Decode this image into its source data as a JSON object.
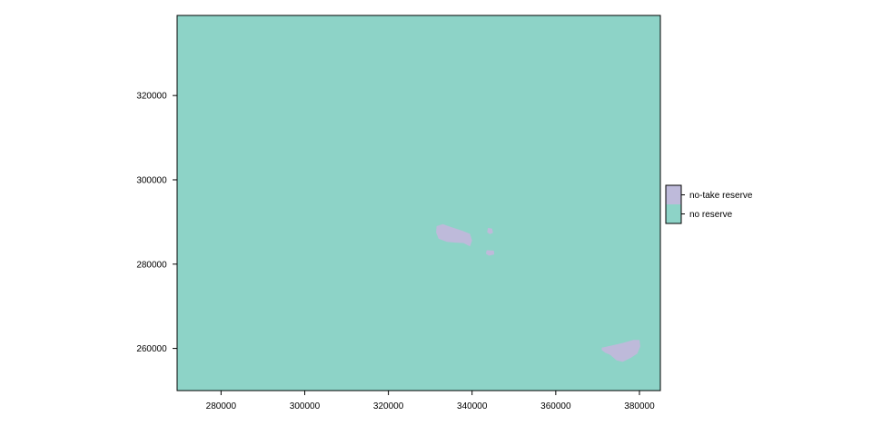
{
  "chart_data": {
    "type": "heatmap",
    "title": "",
    "xlabel": "",
    "ylabel": "",
    "xlim": [
      269500,
      385000
    ],
    "ylim": [
      250000,
      339000
    ],
    "x_ticks": [
      280000,
      300000,
      320000,
      340000,
      360000,
      380000
    ],
    "y_ticks": [
      260000,
      280000,
      300000,
      320000
    ],
    "x_tick_labels": [
      "280000",
      "300000",
      "320000",
      "340000",
      "360000",
      "380000"
    ],
    "y_tick_labels": [
      "260000",
      "280000",
      "300000",
      "320000"
    ],
    "grid": false,
    "legend_position": "right",
    "categories": [
      {
        "name": "no-take reserve",
        "color": "#bebada"
      },
      {
        "name": "no reserve",
        "color": "#8dd3c7"
      }
    ],
    "background_category": "no reserve",
    "regions": [
      {
        "category": "no-take reserve",
        "polygon": [
          [
            331500,
            289000
          ],
          [
            333000,
            289500
          ],
          [
            335000,
            288800
          ],
          [
            337500,
            288000
          ],
          [
            339500,
            287200
          ],
          [
            340000,
            285600
          ],
          [
            339500,
            284200
          ],
          [
            338000,
            285000
          ],
          [
            336000,
            285100
          ],
          [
            334000,
            285300
          ],
          [
            332000,
            286000
          ],
          [
            331400,
            287500
          ]
        ]
      },
      {
        "category": "no-take reserve",
        "polygon": [
          [
            343800,
            288600
          ],
          [
            344800,
            288400
          ],
          [
            345000,
            287400
          ],
          [
            344200,
            287100
          ],
          [
            343600,
            287600
          ]
        ]
      },
      {
        "category": "no-take reserve",
        "polygon": [
          [
            343500,
            283300
          ],
          [
            345200,
            283200
          ],
          [
            345300,
            282300
          ],
          [
            344000,
            282000
          ],
          [
            343300,
            282500
          ]
        ]
      },
      {
        "category": "no-take reserve",
        "polygon": [
          [
            371000,
            260200
          ],
          [
            373500,
            260700
          ],
          [
            376000,
            261300
          ],
          [
            378500,
            262000
          ],
          [
            380000,
            262000
          ],
          [
            380200,
            260500
          ],
          [
            379500,
            258800
          ],
          [
            378000,
            257800
          ],
          [
            376000,
            256800
          ],
          [
            374500,
            257200
          ],
          [
            373000,
            258500
          ],
          [
            371800,
            259000
          ],
          [
            371000,
            259600
          ]
        ]
      }
    ]
  }
}
